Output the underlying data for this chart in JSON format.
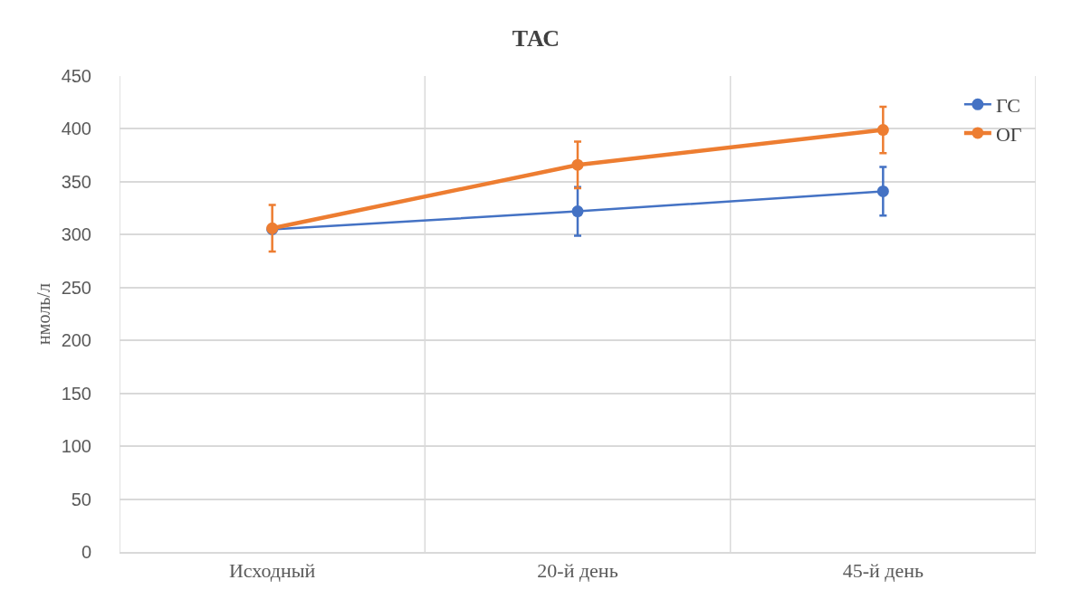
{
  "chart_data": {
    "type": "line",
    "title": "ТАС",
    "ylabel": "нмоль/л",
    "categories": [
      "Исходный",
      "20-й день",
      "45-й день"
    ],
    "series": [
      {
        "name": "ГС",
        "color": "#4472c4",
        "values": [
          305,
          322,
          341
        ],
        "errors": [
          null,
          23,
          23
        ]
      },
      {
        "name": "ОГ",
        "color": "#ed7d31",
        "values": [
          306,
          366,
          399
        ],
        "errors": [
          22,
          22,
          22
        ]
      }
    ],
    "ylim": [
      0,
      450
    ],
    "yticks": [
      0,
      50,
      100,
      150,
      200,
      250,
      300,
      350,
      400,
      450
    ],
    "grid": true,
    "legend": "top right",
    "marker": "circle",
    "line_style": "solid"
  }
}
